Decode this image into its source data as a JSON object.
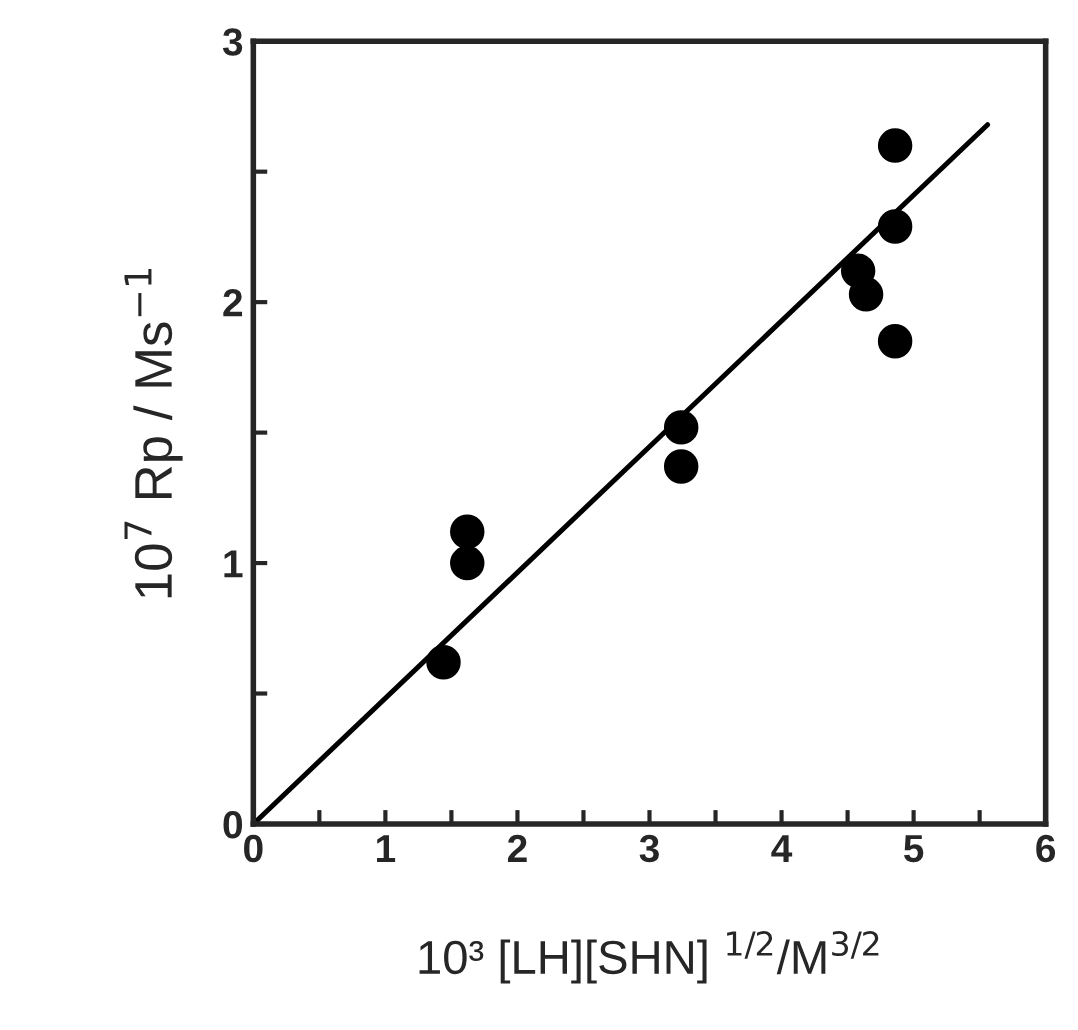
{
  "chart_data": {
    "type": "scatter",
    "xlabel": "10³ [LH][SHN] $^{1/2}$/M$^{3/2}$",
    "ylabel": "10$^{7}$ Rp / Ms$^{−1}$",
    "xlim": [
      0,
      6
    ],
    "ylim": [
      0,
      3
    ],
    "xticks": [
      0,
      {
        "value": 0.5,
        "label": null
      },
      1,
      {
        "value": 1.5,
        "label": null
      },
      2,
      {
        "value": 2.5,
        "label": null
      },
      3,
      {
        "value": 3.5,
        "label": null
      },
      4,
      {
        "value": 4.5,
        "label": null
      },
      5,
      {
        "value": 5.5,
        "label": null
      },
      6
    ],
    "yticks": [
      0,
      {
        "value": 0.5,
        "label": null
      },
      1,
      {
        "value": 1.5,
        "label": null
      },
      2,
      {
        "value": 2.5,
        "label": null
      },
      3
    ],
    "grid": false,
    "legend": false,
    "series": [
      {
        "marker": "circle",
        "color": "#000000",
        "x": [
          1.44,
          1.62,
          1.62,
          3.24,
          3.24,
          4.58,
          4.64,
          4.86,
          4.86,
          4.86
        ],
        "values": [
          0.62,
          1.12,
          1.0,
          1.52,
          1.37,
          2.12,
          2.03,
          2.6,
          2.29,
          1.85
        ]
      },
      {
        "type": "line",
        "color": "#000000",
        "x": [
          0,
          5.56
        ],
        "values": [
          0,
          2.68
        ]
      }
    ]
  }
}
